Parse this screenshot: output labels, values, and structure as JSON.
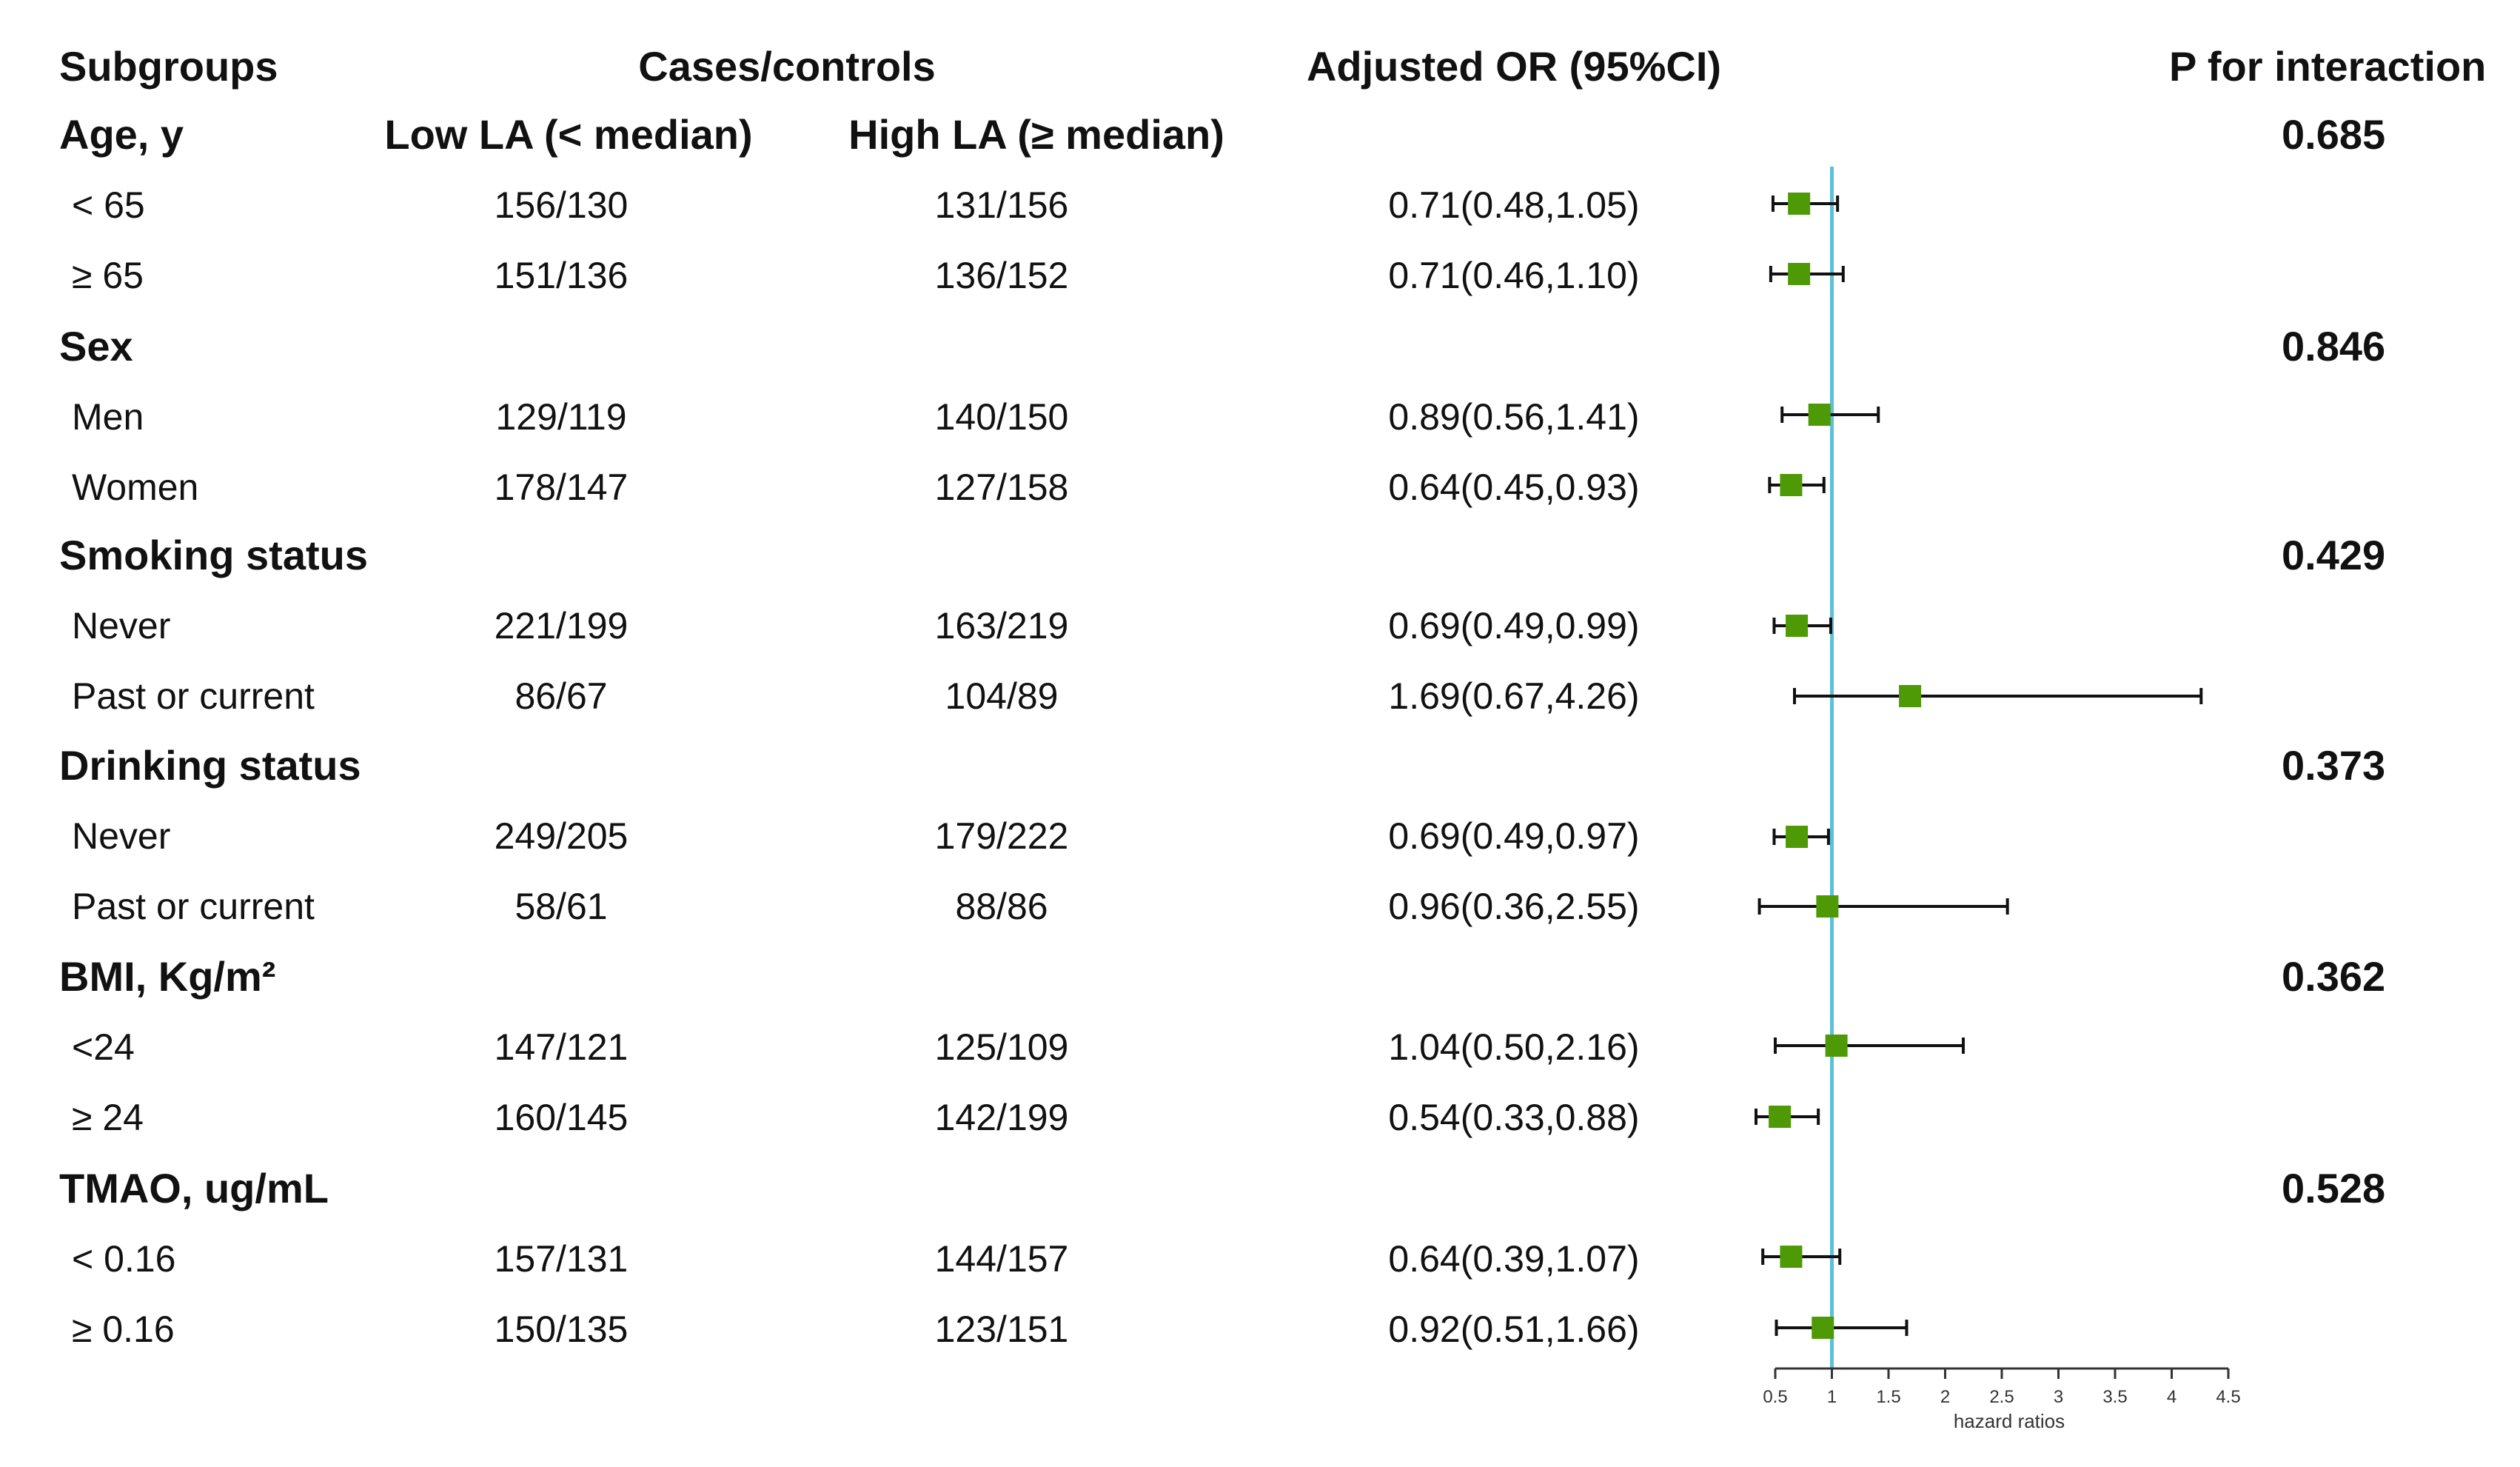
{
  "headers": {
    "subgroups": "Subgroups",
    "cases_controls": "Cases/controls",
    "adjusted_or": "Adjusted OR (95%CI)",
    "p_interaction": "P for interaction",
    "low_la": "Low LA (< median)",
    "high_la": "High LA (≥ median)"
  },
  "groups": [
    {
      "name": "Age, y",
      "p": "0.685",
      "rows": [
        {
          "label": "< 65",
          "low": "156/130",
          "high": "131/156",
          "or_text": "0.71(0.48,1.05)"
        },
        {
          "label": "≥ 65",
          "low": "151/136",
          "high": "136/152",
          "or_text": "0.71(0.46,1.10)"
        }
      ]
    },
    {
      "name": "Sex",
      "p": "0.846",
      "rows": [
        {
          "label": "Men",
          "low": "129/119",
          "high": "140/150",
          "or_text": "0.89(0.56,1.41)"
        },
        {
          "label": "Women",
          "low": "178/147",
          "high": "127/158",
          "or_text": "0.64(0.45,0.93)"
        }
      ]
    },
    {
      "name": "Smoking status",
      "p": "0.429",
      "rows": [
        {
          "label": "Never",
          "low": "221/199",
          "high": "163/219",
          "or_text": "0.69(0.49,0.99)"
        },
        {
          "label": "Past or current",
          "low": "86/67",
          "high": "104/89",
          "or_text": "1.69(0.67,4.26)"
        }
      ]
    },
    {
      "name": "Drinking status",
      "p": "0.373",
      "rows": [
        {
          "label": "Never",
          "low": "249/205",
          "high": "179/222",
          "or_text": "0.69(0.49,0.97)"
        },
        {
          "label": "Past or current",
          "low": "58/61",
          "high": "88/86",
          "or_text": "0.96(0.36,2.55)"
        }
      ]
    },
    {
      "name": "BMI, Kg/m²",
      "p": "0.362",
      "rows": [
        {
          "label": "<24",
          "low": "147/121",
          "high": "125/109",
          "or_text": "1.04(0.50,2.16)"
        },
        {
          "label": "≥ 24",
          "low": "160/145",
          "high": "142/199",
          "or_text": "0.54(0.33,0.88)"
        }
      ]
    },
    {
      "name": "TMAO, ug/mL",
      "p": "0.528",
      "rows": [
        {
          "label": "< 0.16",
          "low": "157/131",
          "high": "144/157",
          "or_text": "0.64(0.39,1.07)"
        },
        {
          "label": "≥ 0.16",
          "low": "150/135",
          "high": "123/151",
          "or_text": "0.92(0.51,1.66)"
        }
      ]
    }
  ],
  "chart_data": {
    "type": "scatter",
    "subtype": "forest-plot",
    "xlabel": "hazard ratios",
    "xlim": [
      0.5,
      4.5
    ],
    "ticks": [
      0.5,
      1,
      1.5,
      2,
      2.5,
      3,
      3.5,
      4,
      4.5
    ],
    "tick_labels": [
      "0.5",
      "1",
      "1.5",
      "2",
      "2.5",
      "3",
      "3.5",
      "4",
      "4.5"
    ],
    "reference_line": 1,
    "point_estimates": [
      0.71,
      0.71,
      0.89,
      0.64,
      0.69,
      1.69,
      0.69,
      0.96,
      1.04,
      0.54,
      0.64,
      0.92
    ],
    "ci_lower": [
      0.48,
      0.46,
      0.56,
      0.45,
      0.49,
      0.67,
      0.49,
      0.36,
      0.5,
      0.33,
      0.39,
      0.51
    ],
    "ci_upper": [
      1.05,
      1.1,
      1.41,
      0.93,
      0.99,
      4.26,
      0.97,
      2.55,
      2.16,
      0.88,
      1.07,
      1.66
    ]
  },
  "colors": {
    "marker": "#4e9a06",
    "reference_line": "#5bc0d8",
    "whisker": "#111111",
    "axis": "#333333"
  }
}
